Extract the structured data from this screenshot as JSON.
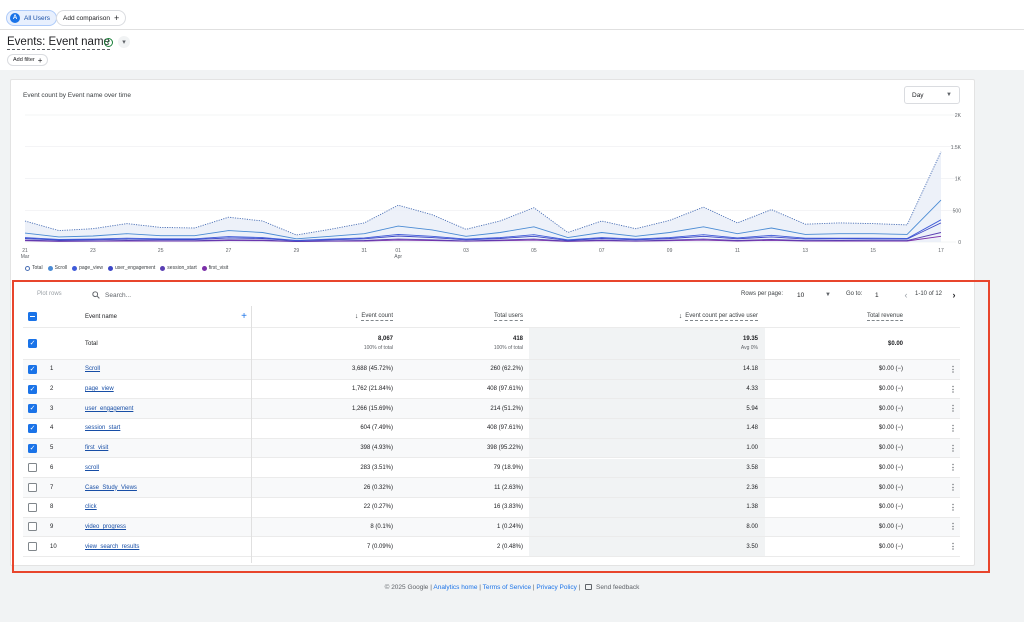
{
  "header": {
    "all_users_initial": "A",
    "all_users_label": "All Users",
    "add_comparison_label": "Add comparison",
    "page_title": "Events: Event name",
    "add_filter_label": "Add filter"
  },
  "chart": {
    "title": "Event count by Event name over time",
    "granularity": "Day"
  },
  "chart_data": {
    "type": "line",
    "title": "Event count by Event name over time",
    "x": [
      21,
      22,
      23,
      24,
      25,
      26,
      27,
      28,
      29,
      30,
      31,
      "01",
      2,
      3,
      4,
      5,
      6,
      7,
      8,
      9,
      10,
      11,
      12,
      13,
      14,
      15,
      16,
      17
    ],
    "x_tick_labels": [
      "21",
      "23",
      "25",
      "27",
      "29",
      "31",
      "01",
      "03",
      "05",
      "07",
      "09",
      "11",
      "13",
      "15",
      "17"
    ],
    "x_tick_sublabels": {
      "21": "Mar",
      "01": "Apr"
    },
    "y_ticks": [
      "2K",
      "1.5K",
      "1K",
      "500",
      "0"
    ],
    "ylim": [
      0,
      2000
    ],
    "legend": [
      "Total",
      "Scroll",
      "page_view",
      "user_engagement",
      "session_start",
      "first_visit"
    ],
    "colors": [
      "#4a6fb5",
      "#4a8bd4",
      "#3f5bd9",
      "#3c46c6",
      "#5a3fb3",
      "#7b2fa8"
    ],
    "series": [
      {
        "name": "Total",
        "style": "dotted",
        "values": [
          330,
          180,
          210,
          290,
          230,
          220,
          390,
          330,
          110,
          200,
          300,
          580,
          430,
          200,
          330,
          540,
          150,
          330,
          210,
          340,
          550,
          300,
          510,
          280,
          300,
          290,
          270,
          1420
        ]
      },
      {
        "name": "Scroll",
        "style": "solid",
        "values": [
          140,
          80,
          95,
          130,
          100,
          100,
          180,
          150,
          50,
          90,
          130,
          250,
          190,
          90,
          150,
          240,
          70,
          150,
          90,
          150,
          240,
          130,
          220,
          120,
          130,
          130,
          120,
          660
        ]
      },
      {
        "name": "page_view",
        "style": "solid",
        "values": [
          70,
          40,
          45,
          60,
          50,
          50,
          85,
          70,
          25,
          45,
          65,
          120,
          90,
          45,
          70,
          115,
          35,
          70,
          45,
          70,
          115,
          65,
          105,
          60,
          60,
          60,
          55,
          350
        ]
      },
      {
        "name": "user_engagement",
        "style": "solid",
        "values": [
          55,
          30,
          35,
          45,
          40,
          40,
          65,
          55,
          20,
          35,
          50,
          95,
          70,
          35,
          55,
          90,
          25,
          55,
          35,
          55,
          90,
          50,
          80,
          45,
          50,
          45,
          45,
          300
        ]
      },
      {
        "name": "session_start",
        "style": "solid",
        "values": [
          30,
          15,
          18,
          25,
          20,
          20,
          35,
          30,
          10,
          18,
          25,
          45,
          35,
          18,
          30,
          45,
          14,
          30,
          18,
          30,
          45,
          25,
          40,
          22,
          25,
          22,
          22,
          150
        ]
      },
      {
        "name": "first_visit",
        "style": "solid",
        "values": [
          20,
          10,
          12,
          16,
          14,
          14,
          22,
          20,
          8,
          12,
          16,
          30,
          24,
          12,
          20,
          30,
          10,
          20,
          12,
          20,
          30,
          16,
          26,
          15,
          16,
          15,
          15,
          90
        ]
      }
    ]
  },
  "table_controls": {
    "plot_rows": "Plot rows",
    "search_placeholder": "Search...",
    "rows_per_page_label": "Rows per page:",
    "rows_per_page": "10",
    "goto_label": "Go to:",
    "goto_value": "1",
    "page_range": "1-10 of 12"
  },
  "table": {
    "headers": {
      "event_name": "Event name",
      "event_count": "Event count",
      "total_users": "Total users",
      "per_user": "Event count per active user",
      "revenue": "Total revenue"
    },
    "totals": {
      "label": "Total",
      "event_count": "8,067",
      "event_count_sub": "100% of total",
      "total_users": "418",
      "total_users_sub": "100% of total",
      "per_user": "19.35",
      "per_user_sub": "Avg 0%",
      "revenue": "$0.00"
    },
    "rows": [
      {
        "idx": "1",
        "name": "Scroll",
        "count": "3,688 (45.72%)",
        "users": "260 (62.2%)",
        "per_user": "14.18",
        "revenue": "$0.00 (−)",
        "checked": true
      },
      {
        "idx": "2",
        "name": "page_view",
        "count": "1,762 (21.84%)",
        "users": "408 (97.61%)",
        "per_user": "4.33",
        "revenue": "$0.00 (−)",
        "checked": true
      },
      {
        "idx": "3",
        "name": "user_engagement",
        "count": "1,266 (15.69%)",
        "users": "214 (51.2%)",
        "per_user": "5.94",
        "revenue": "$0.00 (−)",
        "checked": true
      },
      {
        "idx": "4",
        "name": "session_start",
        "count": "604 (7.49%)",
        "users": "408 (97.61%)",
        "per_user": "1.48",
        "revenue": "$0.00 (−)",
        "checked": true
      },
      {
        "idx": "5",
        "name": "first_visit",
        "count": "398 (4.93%)",
        "users": "398 (95.22%)",
        "per_user": "1.00",
        "revenue": "$0.00 (−)",
        "checked": true
      },
      {
        "idx": "6",
        "name": "scroll",
        "count": "283 (3.51%)",
        "users": "79 (18.9%)",
        "per_user": "3.58",
        "revenue": "$0.00 (−)",
        "checked": false
      },
      {
        "idx": "7",
        "name": "Case_Study_Views",
        "count": "26 (0.32%)",
        "users": "11 (2.63%)",
        "per_user": "2.36",
        "revenue": "$0.00 (−)",
        "checked": false
      },
      {
        "idx": "8",
        "name": "click",
        "count": "22 (0.27%)",
        "users": "16 (3.83%)",
        "per_user": "1.38",
        "revenue": "$0.00 (−)",
        "checked": false
      },
      {
        "idx": "9",
        "name": "video_progress",
        "count": "8 (0.1%)",
        "users": "1 (0.24%)",
        "per_user": "8.00",
        "revenue": "$0.00 (−)",
        "checked": false
      },
      {
        "idx": "10",
        "name": "view_search_results",
        "count": "7 (0.09%)",
        "users": "2 (0.48%)",
        "per_user": "3.50",
        "revenue": "$0.00 (−)",
        "checked": false
      }
    ]
  },
  "footer": {
    "copyright": "© 2025 Google |",
    "analytics_home": "Analytics home",
    "sep": "|",
    "terms": "Terms of Service",
    "privacy": "Privacy Policy",
    "send_feedback": "Send feedback"
  }
}
